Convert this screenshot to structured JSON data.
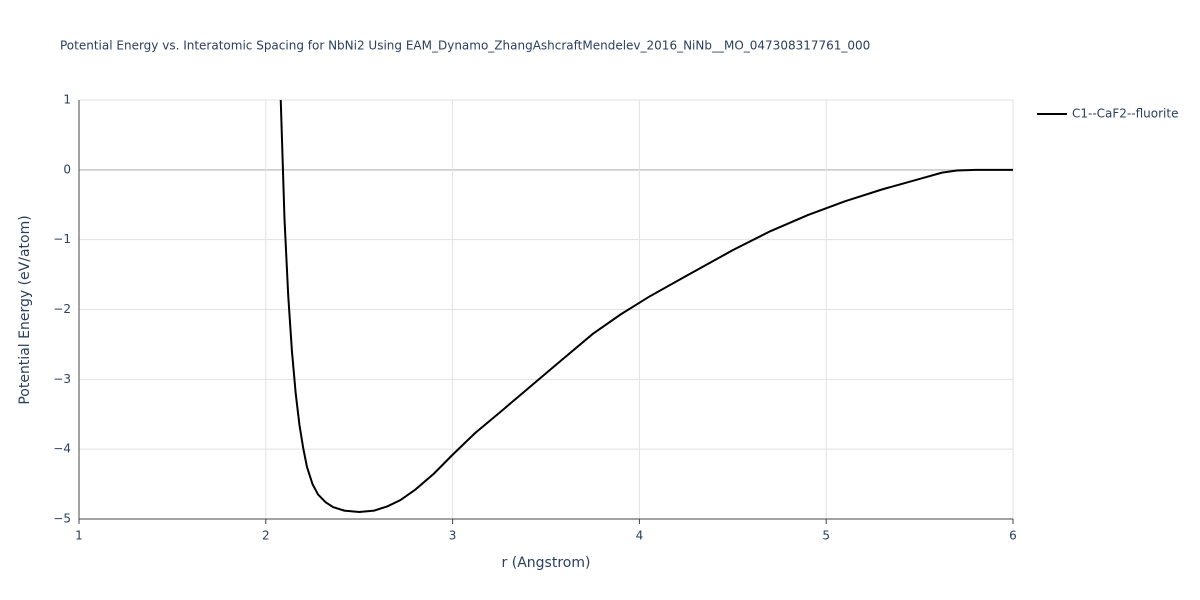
{
  "chart_data": {
    "type": "line",
    "title": "Potential Energy vs. Interatomic Spacing for NbNi2 Using EAM_Dynamo_ZhangAshcraftMendelev_2016_NiNb__MO_047308317761_000",
    "xlabel": "r (Angstrom)",
    "ylabel": "Potential Energy (eV/atom)",
    "x": [
      2.08,
      2.1,
      2.12,
      2.14,
      2.16,
      2.18,
      2.2,
      2.22,
      2.25,
      2.28,
      2.32,
      2.36,
      2.42,
      2.5,
      2.58,
      2.65,
      2.72,
      2.8,
      2.9,
      3.0,
      3.12,
      3.25,
      3.4,
      3.55,
      3.75,
      3.9,
      4.05,
      4.25,
      4.5,
      4.7,
      4.9,
      5.1,
      5.3,
      5.5,
      5.62,
      5.7,
      5.8,
      6.0
    ],
    "series": [
      {
        "name": "C1--CaF2--fluorite",
        "color": "#000000",
        "values": [
          1.0,
          -0.7,
          -1.8,
          -2.6,
          -3.2,
          -3.65,
          -3.98,
          -4.25,
          -4.5,
          -4.65,
          -4.76,
          -4.83,
          -4.88,
          -4.9,
          -4.88,
          -4.82,
          -4.73,
          -4.58,
          -4.35,
          -4.08,
          -3.77,
          -3.48,
          -3.14,
          -2.8,
          -2.35,
          -2.07,
          -1.82,
          -1.52,
          -1.15,
          -0.88,
          -0.65,
          -0.45,
          -0.28,
          -0.13,
          -0.04,
          -0.01,
          0,
          0
        ]
      }
    ],
    "xlim": [
      1,
      6
    ],
    "ylim": [
      -5,
      1
    ],
    "xticks": [
      1,
      2,
      3,
      4,
      5,
      6
    ],
    "yticks": [
      {
        "value": -5,
        "label": "−5"
      },
      {
        "value": -4,
        "label": "−4"
      },
      {
        "value": -3,
        "label": "−3"
      },
      {
        "value": -2,
        "label": "−2"
      },
      {
        "value": -1,
        "label": "−1"
      },
      0,
      1
    ],
    "grid": true,
    "legend": "right"
  }
}
